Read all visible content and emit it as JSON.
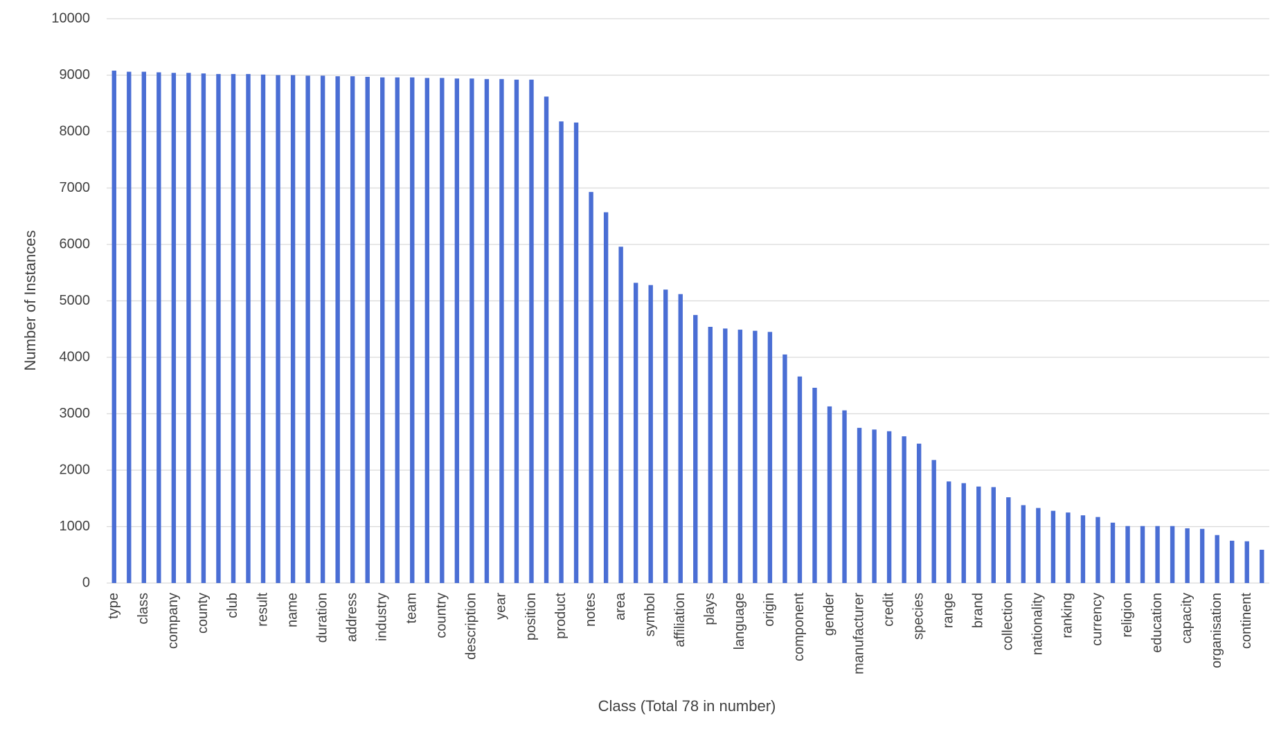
{
  "chart_data": {
    "type": "bar",
    "x_label": "Class (Total 78 in number)",
    "y_label": "Number of Instances",
    "categories": [
      "type",
      null,
      "class",
      null,
      "company",
      null,
      "county",
      null,
      "club",
      null,
      "result",
      null,
      "name",
      null,
      "duration",
      null,
      "address",
      null,
      "industry",
      null,
      "team",
      null,
      "country",
      null,
      "description",
      null,
      "year",
      null,
      "position",
      null,
      "product",
      null,
      "notes",
      null,
      "area",
      null,
      "symbol",
      null,
      "affiliation",
      null,
      "plays",
      null,
      "language",
      null,
      "origin",
      null,
      "component",
      null,
      "gender",
      null,
      "manufacturer",
      null,
      "credit",
      null,
      "species",
      null,
      "range",
      null,
      "brand",
      null,
      "collection",
      null,
      "nationality",
      null,
      "ranking",
      null,
      "currency",
      null,
      "religion",
      null,
      "education",
      null,
      "capacity",
      null,
      "organisation",
      null,
      "continent",
      null
    ],
    "values": [
      9080,
      9060,
      9060,
      9050,
      9040,
      9040,
      9030,
      9020,
      9020,
      9020,
      9010,
      9000,
      9000,
      8990,
      8990,
      8980,
      8980,
      8970,
      8960,
      8960,
      8960,
      8950,
      8950,
      8940,
      8940,
      8930,
      8930,
      8920,
      8920,
      8620,
      8180,
      8160,
      6930,
      6570,
      5960,
      5320,
      5280,
      5200,
      5120,
      4750,
      4540,
      4510,
      4490,
      4470,
      4450,
      4050,
      3660,
      3460,
      3130,
      3060,
      2750,
      2720,
      2690,
      2600,
      2470,
      2180,
      1800,
      1770,
      1710,
      1700,
      1520,
      1380,
      1330,
      1280,
      1250,
      1200,
      1170,
      1070,
      1010,
      1010,
      1010,
      1010,
      970,
      960,
      850,
      750,
      740,
      590
    ],
    "color": "#4a6ed4",
    "ylim": [
      0,
      10000
    ],
    "yticks": [
      0,
      1000,
      2000,
      3000,
      4000,
      5000,
      6000,
      7000,
      8000,
      9000,
      10000
    ],
    "grid": true
  }
}
